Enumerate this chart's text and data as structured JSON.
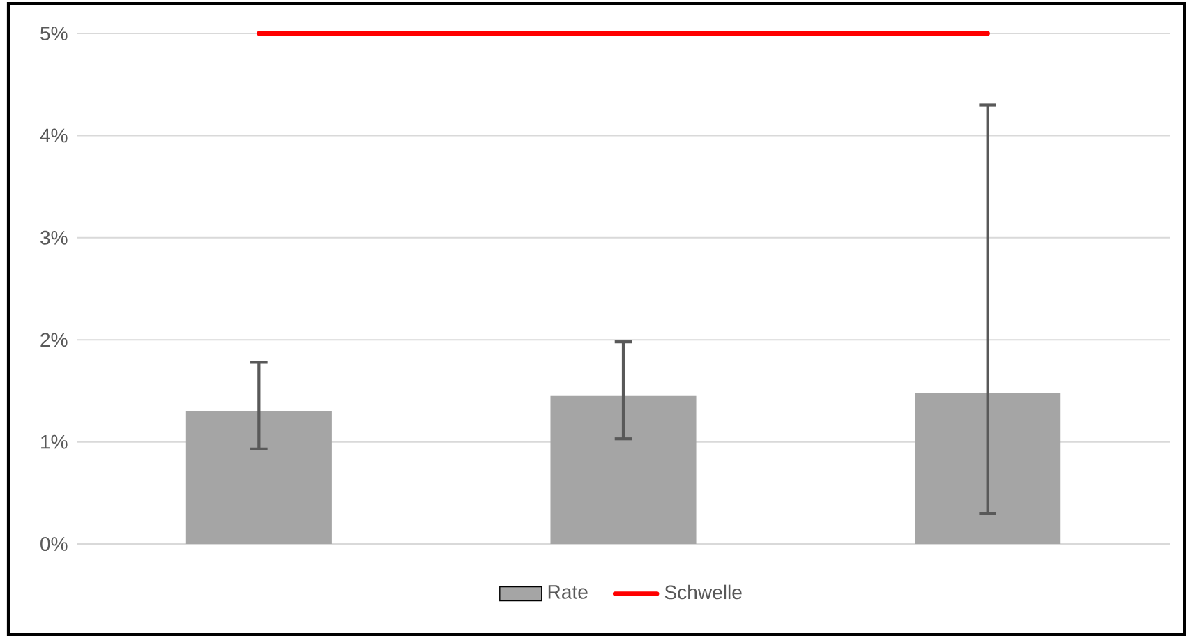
{
  "chart_data": {
    "type": "bar",
    "categories": [
      null,
      null,
      null
    ],
    "series": [
      {
        "name": "Rate",
        "color": "#a5a5a5",
        "values": [
          1.3,
          1.45,
          1.48
        ],
        "errors": [
          [
            0.93,
            1.78
          ],
          [
            1.03,
            1.98
          ],
          [
            0.3,
            4.3
          ]
        ]
      },
      {
        "name": "Schwelle",
        "type": "line",
        "color": "#ff0000",
        "values": [
          5,
          5,
          5
        ]
      }
    ],
    "ylim": [
      0,
      5
    ],
    "yticks": [
      {
        "value": 0,
        "label": "0%"
      },
      {
        "value": 1,
        "label": "1%"
      },
      {
        "value": 2,
        "label": "2%"
      },
      {
        "value": 3,
        "label": "3%"
      },
      {
        "value": 4,
        "label": "4%"
      },
      {
        "value": 5,
        "label": "5%"
      }
    ],
    "grid": "y",
    "legend": "bottom"
  }
}
